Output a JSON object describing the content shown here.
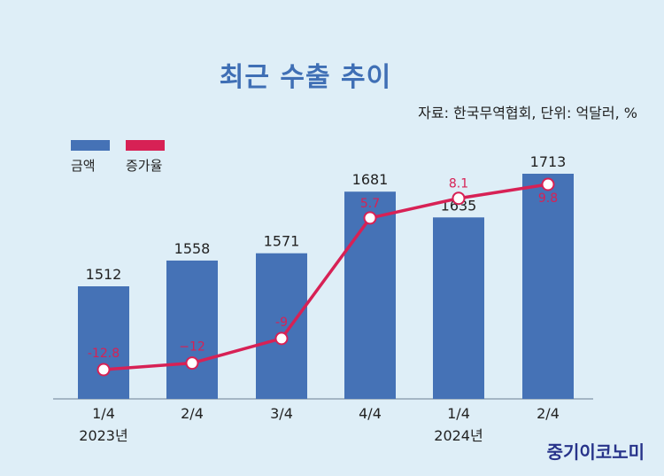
{
  "title": "최근 수출 추이",
  "source": "자료: 한국무역협회, 단위: 억달러, %",
  "brand": "중기이코노미",
  "legend": {
    "amount_label": "금액",
    "growth_label": "증가율"
  },
  "colors": {
    "bar": "#4572b6",
    "line": "#d72155",
    "growth_label": "#d72155",
    "text": "#222222"
  },
  "chart_data": {
    "type": "bar",
    "categories": [
      "1/4",
      "2/4",
      "3/4",
      "4/4",
      "1/4",
      "2/4"
    ],
    "year_labels": [
      "2023년",
      "",
      "",
      "",
      "2024년",
      ""
    ],
    "series": [
      {
        "name": "금액",
        "type": "bar",
        "values": [
          1512,
          1558,
          1571,
          1681,
          1635,
          1713
        ]
      },
      {
        "name": "증가율",
        "type": "line",
        "values": [
          -12.8,
          -12,
          -9,
          5.7,
          8.1,
          9.8
        ]
      }
    ],
    "bar_labels": [
      "1512",
      "1558",
      "1571",
      "1681",
      "1635",
      "1713"
    ],
    "line_labels": [
      "-12.8",
      "−12",
      "-9",
      "5.7",
      "8.1",
      "9.8"
    ],
    "legend_position": "top-left",
    "grid": false
  }
}
